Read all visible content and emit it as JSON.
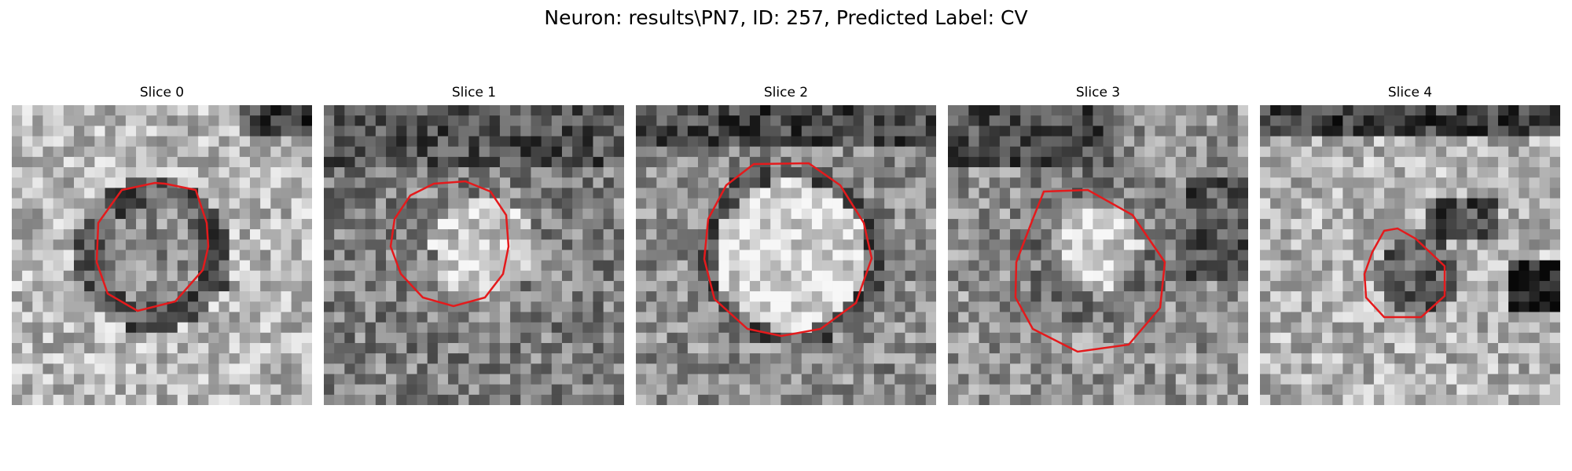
{
  "figure": {
    "title": "Neuron: results\\PN7, ID: 257, Predicted Label: CV"
  },
  "colors": {
    "contour": "#e41a1c",
    "background": "#ffffff"
  },
  "panels": [
    {
      "title": "Slice 0"
    },
    {
      "title": "Slice 1"
    },
    {
      "title": "Slice 2"
    },
    {
      "title": "Slice 3"
    },
    {
      "title": "Slice 4"
    }
  ]
}
